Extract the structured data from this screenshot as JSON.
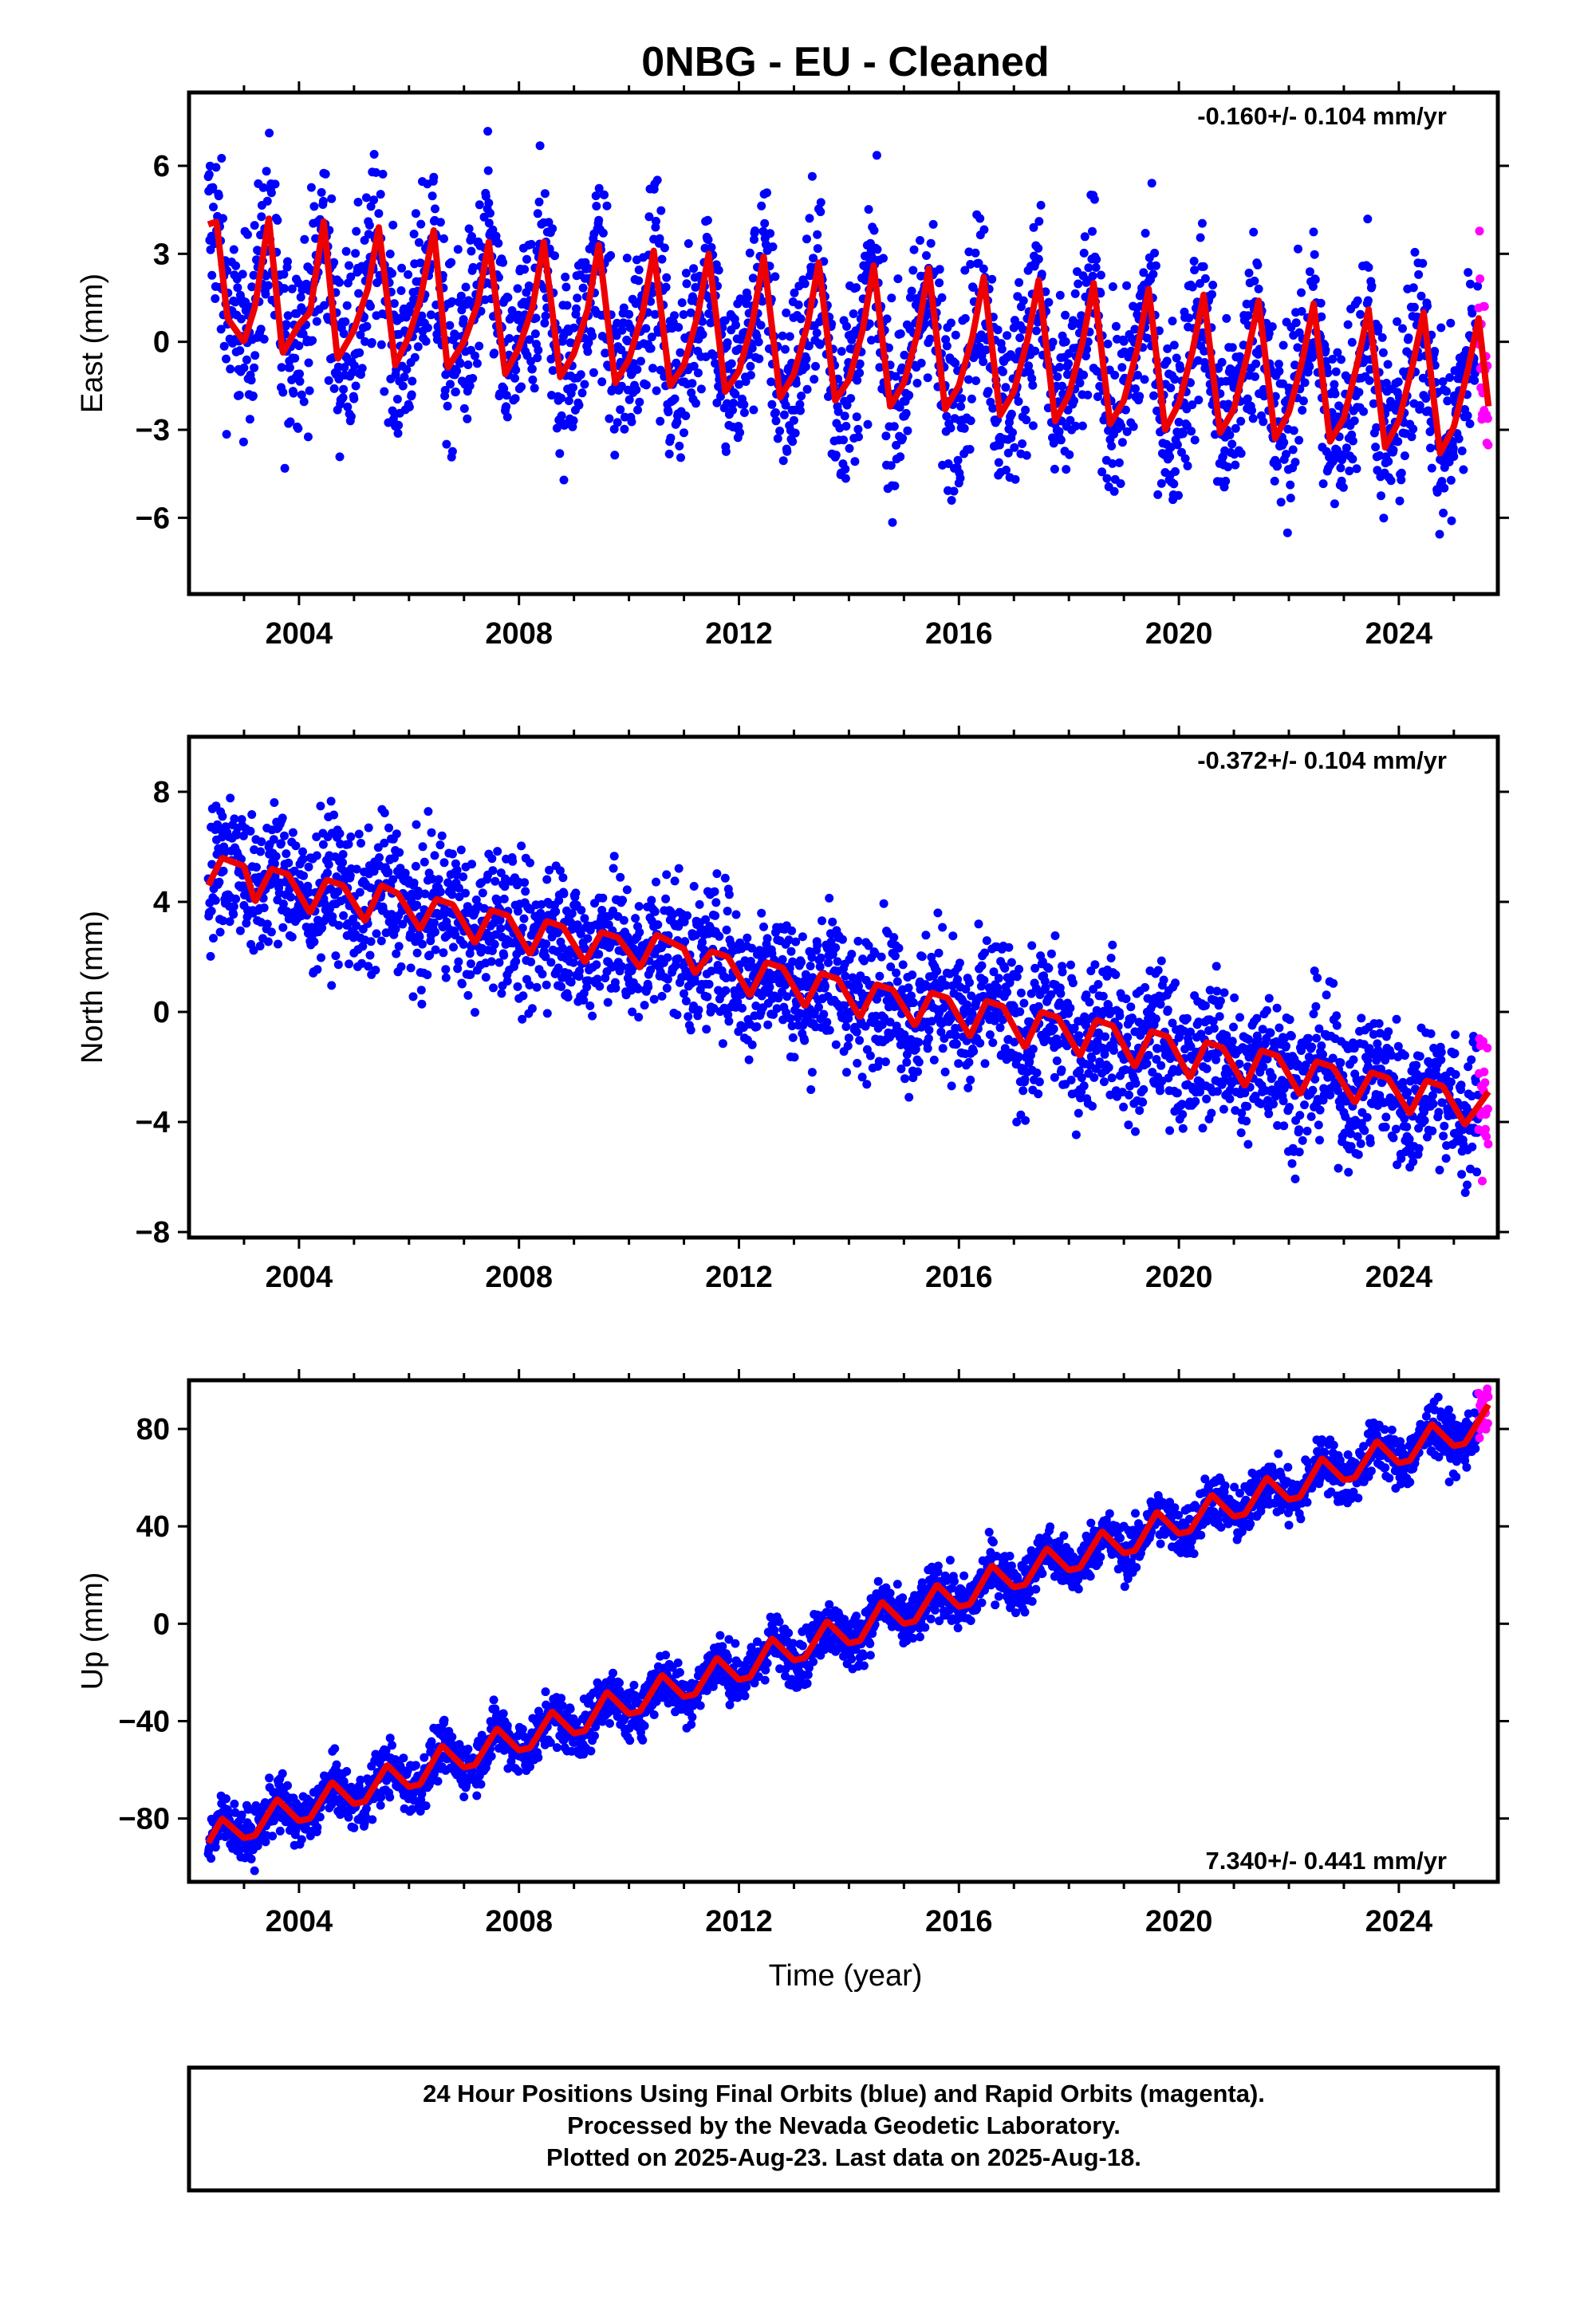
{
  "chart_data": {
    "title": "0NBG  - EU - Cleaned",
    "type": "scatter",
    "xlabel": "Time (year)",
    "xlim": [
      2002.0,
      2025.8
    ],
    "x_ticks": [
      "2004",
      "2008",
      "2012",
      "2016",
      "2020",
      "2024"
    ],
    "x_tick_values": [
      2004,
      2008,
      2012,
      2016,
      2020,
      2024
    ],
    "colors": {
      "final_orbits": "#0000ff",
      "rapid_orbits": "#ff00ff",
      "model": "#ee0000"
    },
    "grid": false,
    "data_start": 2002.35,
    "rapid_start": 2025.45,
    "data_end": 2025.63,
    "panels": [
      {
        "id": "east",
        "ylabel": "East (mm)",
        "ylim": [
          -8.6,
          8.5
        ],
        "y_ticks": [
          "6",
          "3",
          "0",
          "−3",
          "−6"
        ],
        "y_tick_values": [
          6,
          3,
          0,
          -3,
          -6
        ],
        "rate_label": "-0.160+/- 0.104 mm/yr",
        "rate_position": "top-right",
        "series": [
          {
            "style": "red-line",
            "x": [
              2002.35,
              2002.5,
              2002.7,
              2003.0,
              2003.2,
              2003.45,
              2003.7,
              2004.0,
              2004.2,
              2004.45,
              2004.7,
              2005.0,
              2005.25,
              2005.45,
              2005.75,
              2006.0,
              2006.2,
              2006.45,
              2006.7,
              2007.0,
              2007.25,
              2007.45,
              2007.75,
              2008.0,
              2008.25,
              2008.45,
              2008.75,
              2009.0,
              2009.25,
              2009.45,
              2009.75,
              2010.0,
              2010.25,
              2010.45,
              2010.75,
              2011.0,
              2011.25,
              2011.45,
              2011.75,
              2012.0,
              2012.25,
              2012.45,
              2012.75,
              2013.0,
              2013.25,
              2013.45,
              2013.75,
              2014.0,
              2014.25,
              2014.45,
              2014.75,
              2015.0,
              2015.25,
              2015.45,
              2015.75,
              2016.0,
              2016.25,
              2016.45,
              2016.75,
              2017.0,
              2017.25,
              2017.45,
              2017.75,
              2018.0,
              2018.25,
              2018.45,
              2018.75,
              2019.0,
              2019.25,
              2019.45,
              2019.75,
              2020.0,
              2020.25,
              2020.45,
              2020.75,
              2021.0,
              2021.25,
              2021.45,
              2021.75,
              2022.0,
              2022.25,
              2022.45,
              2022.75,
              2023.0,
              2023.25,
              2023.45,
              2023.75,
              2024.0,
              2024.25,
              2024.45,
              2024.75,
              2025.0,
              2025.25,
              2025.45,
              2025.63
            ],
            "y": [
              4.0,
              4.1,
              0.8,
              0.0,
              1.2,
              4.2,
              -0.4,
              0.6,
              1.0,
              4.1,
              -0.6,
              0.4,
              1.8,
              3.9,
              -0.8,
              0.2,
              1.4,
              3.8,
              -0.9,
              0.0,
              1.3,
              3.4,
              -1.1,
              -0.2,
              1.2,
              3.4,
              -1.2,
              -0.4,
              1.1,
              3.3,
              -1.4,
              -0.6,
              1.0,
              3.1,
              -1.5,
              -0.8,
              0.9,
              3.0,
              -1.7,
              -1.0,
              0.7,
              2.9,
              -1.9,
              -1.1,
              0.6,
              2.7,
              -2.0,
              -1.3,
              0.4,
              2.6,
              -2.2,
              -1.4,
              0.3,
              2.5,
              -2.3,
              -1.5,
              0.2,
              2.2,
              -2.5,
              -1.7,
              0.1,
              2.1,
              -2.7,
              -1.8,
              0.0,
              2.0,
              -2.8,
              -2.0,
              -0.2,
              1.8,
              -3.0,
              -2.1,
              -0.3,
              1.6,
              -3.1,
              -2.3,
              -0.4,
              1.4,
              -3.3,
              -2.4,
              -0.6,
              1.3,
              -3.4,
              -2.6,
              -0.7,
              1.1,
              -3.6,
              -2.7,
              -0.8,
              1.0,
              -3.8,
              -2.9,
              -1.0,
              0.8,
              -2.2
            ]
          }
        ]
      },
      {
        "id": "north",
        "ylabel": "North (mm)",
        "ylim": [
          -8.2,
          10.0
        ],
        "y_ticks": [
          "8",
          "4",
          "0",
          "−4",
          "−8"
        ],
        "y_tick_values": [
          8,
          4,
          0,
          -4,
          -8
        ],
        "rate_label": "-0.372+/- 0.104 mm/yr",
        "rate_position": "top-right",
        "series": [
          {
            "style": "red-line",
            "x": [
              2002.35,
              2002.6,
              2003.0,
              2003.2,
              2003.5,
              2003.8,
              2004.2,
              2004.5,
              2004.8,
              2005.2,
              2005.5,
              2005.8,
              2006.2,
              2006.5,
              2006.8,
              2007.2,
              2007.5,
              2007.8,
              2008.2,
              2008.5,
              2008.8,
              2009.2,
              2009.5,
              2009.8,
              2010.2,
              2010.5,
              2010.8,
              2011.0,
              2011.2,
              2011.5,
              2011.8,
              2012.2,
              2012.5,
              2012.8,
              2013.2,
              2013.5,
              2013.8,
              2014.2,
              2014.5,
              2014.8,
              2015.2,
              2015.5,
              2015.8,
              2016.2,
              2016.5,
              2016.8,
              2017.2,
              2017.5,
              2017.8,
              2018.2,
              2018.5,
              2018.8,
              2019.2,
              2019.5,
              2019.8,
              2020.2,
              2020.5,
              2020.8,
              2021.2,
              2021.5,
              2021.8,
              2022.2,
              2022.5,
              2022.8,
              2023.2,
              2023.5,
              2023.8,
              2024.2,
              2024.5,
              2024.8,
              2025.2,
              2025.63
            ],
            "y": [
              4.6,
              5.6,
              5.3,
              4.0,
              5.2,
              5.0,
              3.6,
              4.8,
              4.6,
              3.3,
              4.6,
              4.3,
              3.0,
              4.1,
              3.9,
              2.5,
              3.7,
              3.5,
              2.1,
              3.3,
              3.1,
              1.8,
              2.9,
              2.7,
              1.6,
              2.8,
              2.5,
              2.3,
              1.4,
              2.2,
              2.0,
              0.6,
              1.8,
              1.6,
              0.2,
              1.4,
              1.2,
              -0.2,
              1.0,
              0.8,
              -0.5,
              0.7,
              0.5,
              -0.9,
              0.4,
              0.2,
              -1.3,
              0.0,
              -0.2,
              -1.6,
              -0.3,
              -0.5,
              -2.0,
              -0.7,
              -0.9,
              -2.4,
              -1.1,
              -1.3,
              -2.7,
              -1.4,
              -1.6,
              -3.0,
              -1.8,
              -2.0,
              -3.3,
              -2.2,
              -2.4,
              -3.7,
              -2.5,
              -2.7,
              -4.1,
              -2.9
            ]
          }
        ]
      },
      {
        "id": "up",
        "ylabel": "Up (mm)",
        "ylim": [
          -106,
          100
        ],
        "y_ticks": [
          "80",
          "40",
          "0",
          "−40",
          "−80"
        ],
        "y_tick_values": [
          80,
          40,
          0,
          -40,
          -80
        ],
        "rate_label": "7.340+/- 0.441 mm/yr",
        "rate_position": "bottom-right",
        "series": [
          {
            "style": "red-line",
            "x": [
              2002.35,
              2002.6,
              2003.0,
              2003.2,
              2003.6,
              2004.0,
              2004.2,
              2004.6,
              2005.0,
              2005.2,
              2005.6,
              2006.0,
              2006.2,
              2006.6,
              2007.0,
              2007.2,
              2007.6,
              2008.0,
              2008.2,
              2008.6,
              2009.0,
              2009.2,
              2009.6,
              2010.0,
              2010.2,
              2010.6,
              2011.0,
              2011.2,
              2011.6,
              2012.0,
              2012.2,
              2012.6,
              2013.0,
              2013.2,
              2013.6,
              2014.0,
              2014.2,
              2014.6,
              2015.0,
              2015.2,
              2015.6,
              2016.0,
              2016.2,
              2016.6,
              2017.0,
              2017.2,
              2017.6,
              2018.0,
              2018.2,
              2018.6,
              2019.0,
              2019.2,
              2019.6,
              2020.0,
              2020.2,
              2020.6,
              2021.0,
              2021.2,
              2021.6,
              2022.0,
              2022.2,
              2022.6,
              2023.0,
              2023.2,
              2023.6,
              2024.0,
              2024.2,
              2024.6,
              2025.0,
              2025.2,
              2025.63
            ],
            "y": [
              -90,
              -80,
              -88,
              -87,
              -72,
              -81,
              -80,
              -65,
              -74,
              -73,
              -58,
              -67,
              -66,
              -50,
              -59,
              -58,
              -43,
              -52,
              -51,
              -36,
              -45,
              -44,
              -28,
              -37,
              -36,
              -21,
              -30,
              -29,
              -14,
              -23,
              -22,
              -6,
              -15,
              -14,
              1,
              -8,
              -7,
              9,
              0,
              1,
              16,
              7,
              8,
              24,
              15,
              16,
              31,
              22,
              23,
              38,
              29,
              30,
              46,
              37,
              38,
              53,
              44,
              45,
              60,
              51,
              52,
              68,
              59,
              60,
              75,
              66,
              67,
              82,
              73,
              74,
              90
            ]
          }
        ]
      }
    ],
    "footer": {
      "lines": [
        "24 Hour Positions Using Final Orbits (blue) and Rapid Orbits (magenta).",
        "Processed by the Nevada Geodetic Laboratory.",
        "Plotted on 2025-Aug-23. Last data on 2025-Aug-18."
      ]
    }
  }
}
